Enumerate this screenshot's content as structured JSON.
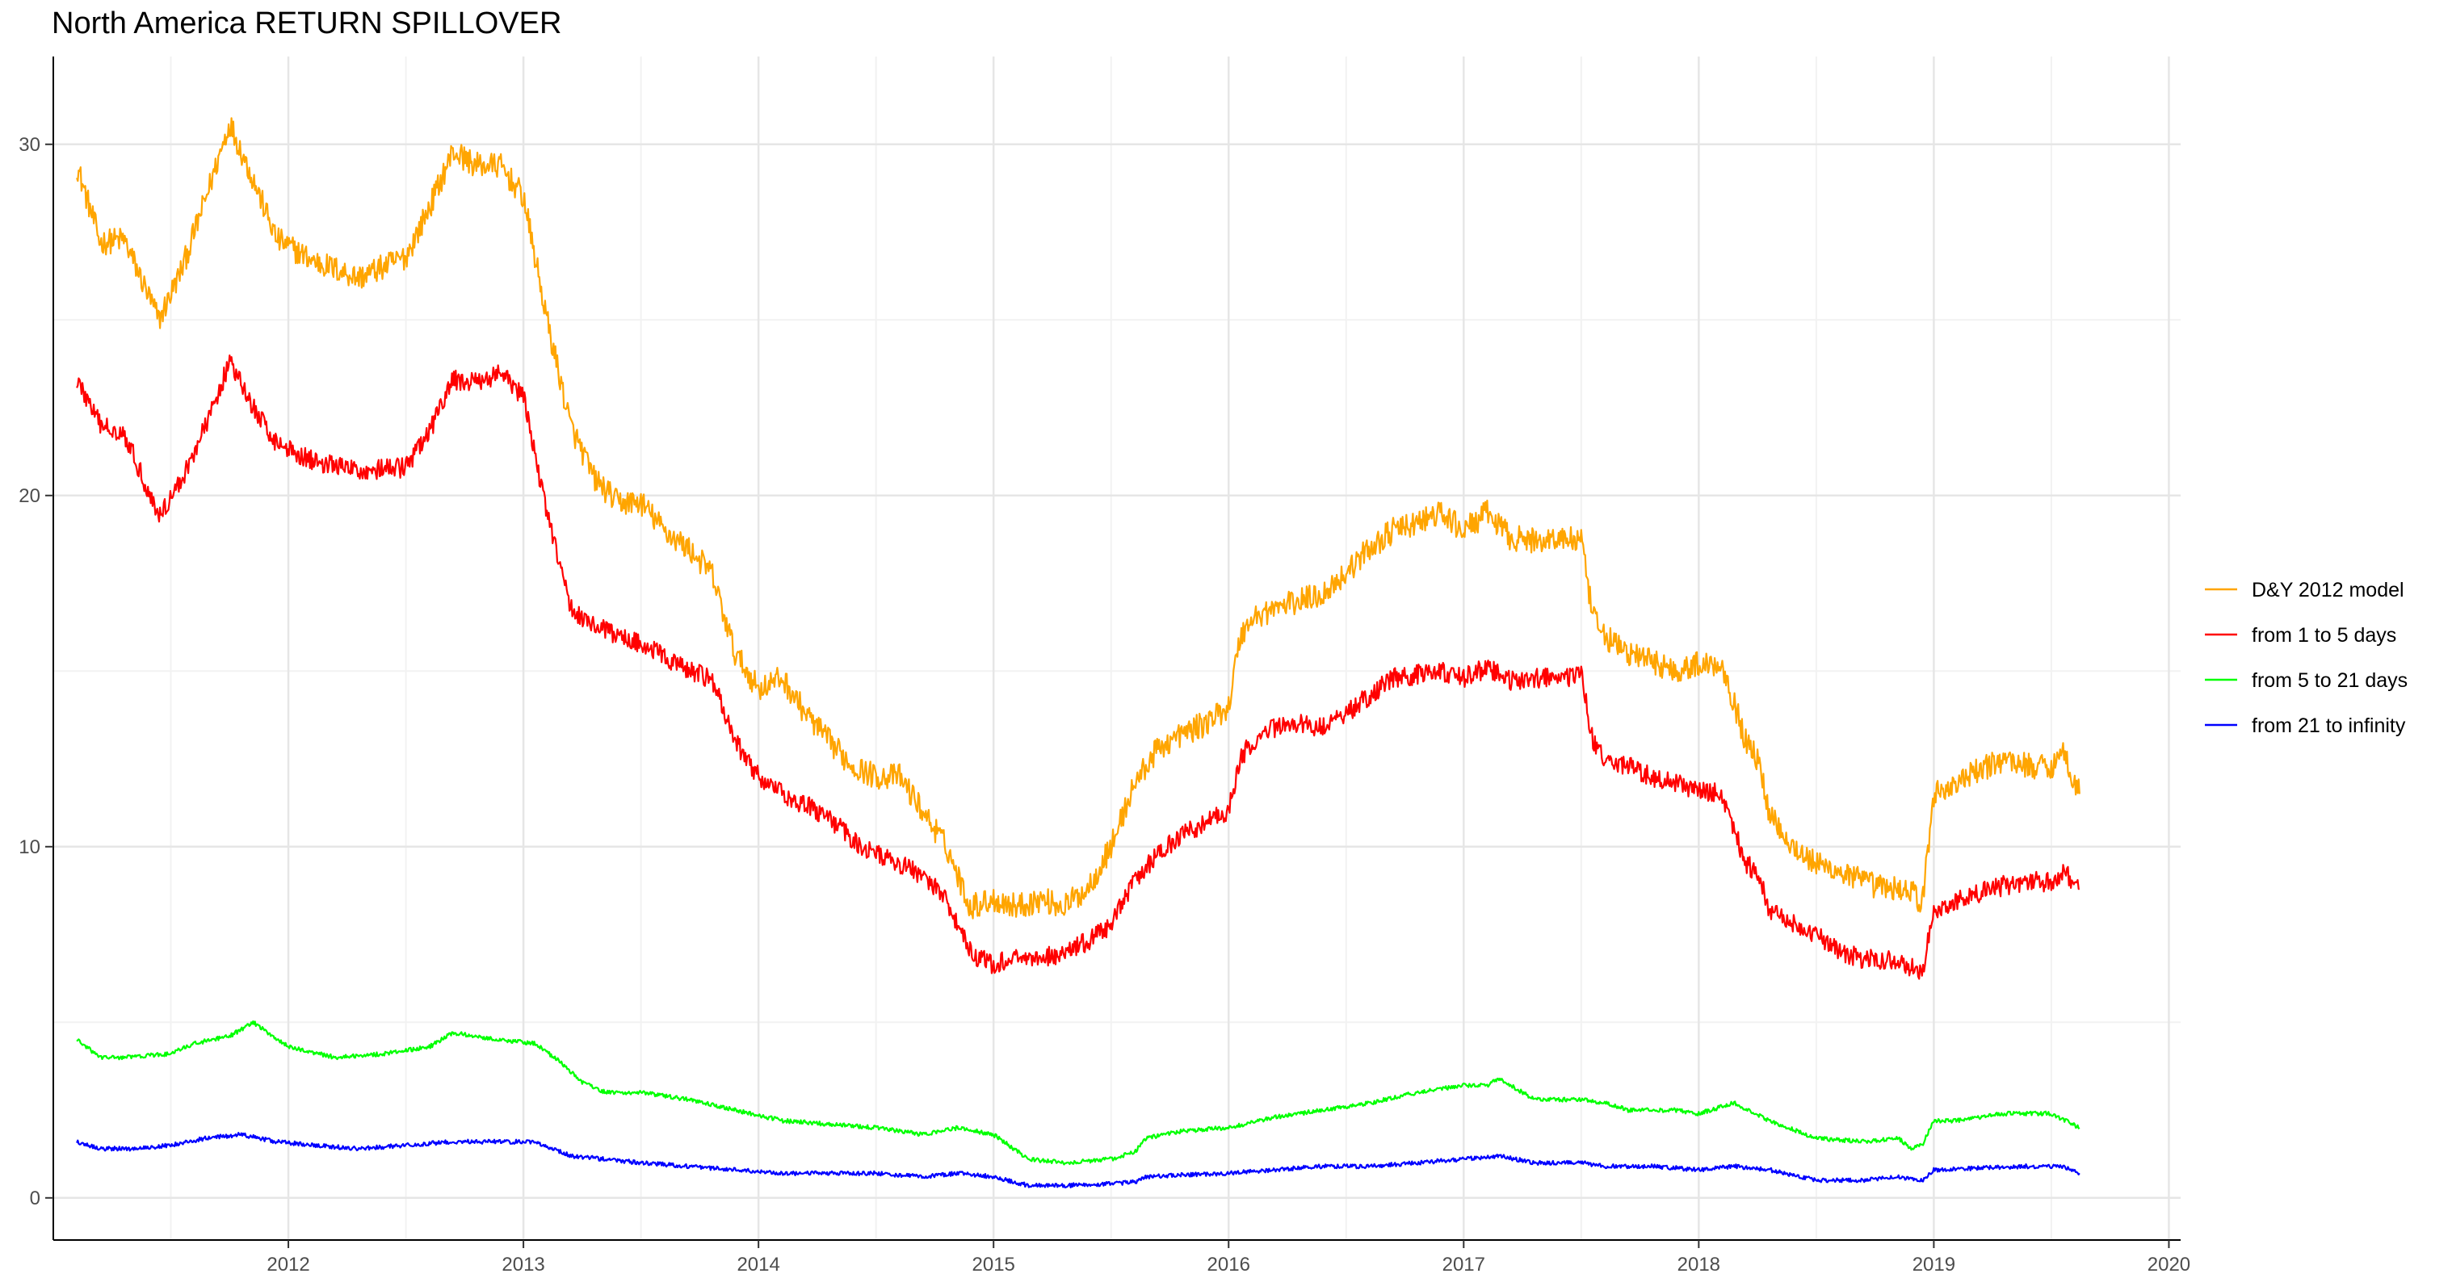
{
  "chart_data": {
    "type": "line",
    "title": "North America RETURN SPILLOVER",
    "xlabel": "",
    "ylabel": "",
    "x_ticks": [
      "2012",
      "2013",
      "2014",
      "2015",
      "2016",
      "2017",
      "2018",
      "2019",
      "2020"
    ],
    "y_ticks": [
      "0",
      "10",
      "20",
      "30"
    ],
    "xlim": [
      2011.0,
      2020.05
    ],
    "ylim": [
      -1.2,
      32.5
    ],
    "grid": true,
    "legend_position": "right",
    "series": [
      {
        "name": "D&Y 2012 model",
        "color": "#FFA500",
        "x": [
          2011.1,
          2011.2,
          2011.3,
          2011.45,
          2011.55,
          2011.65,
          2011.75,
          2011.85,
          2011.95,
          2012.1,
          2012.3,
          2012.5,
          2012.6,
          2012.7,
          2012.8,
          2012.9,
          2013.0,
          2013.1,
          2013.2,
          2013.3,
          2013.4,
          2013.5,
          2013.6,
          2013.7,
          2013.8,
          2013.9,
          2014.0,
          2014.1,
          2014.2,
          2014.3,
          2014.4,
          2014.5,
          2014.6,
          2014.7,
          2014.8,
          2014.9,
          2015.0,
          2015.1,
          2015.2,
          2015.3,
          2015.4,
          2015.5,
          2015.6,
          2015.7,
          2015.8,
          2015.9,
          2016.0,
          2016.05,
          2016.1,
          2016.2,
          2016.3,
          2016.4,
          2016.5,
          2016.6,
          2016.7,
          2016.8,
          2016.9,
          2017.0,
          2017.1,
          2017.2,
          2017.3,
          2017.4,
          2017.5,
          2017.55,
          2017.6,
          2017.7,
          2017.8,
          2017.9,
          2018.0,
          2018.1,
          2018.2,
          2018.25,
          2018.3,
          2018.4,
          2018.5,
          2018.6,
          2018.7,
          2018.8,
          2018.9,
          2018.95,
          2019.0,
          2019.1,
          2019.2,
          2019.3,
          2019.4,
          2019.5,
          2019.55,
          2019.62
        ],
        "values": [
          29.4,
          27.2,
          27.3,
          25.0,
          26.5,
          28.5,
          30.6,
          29.0,
          27.3,
          26.7,
          26.2,
          26.8,
          28.2,
          29.8,
          29.4,
          29.4,
          28.5,
          25.0,
          22.0,
          20.5,
          19.8,
          19.8,
          19.0,
          18.5,
          17.8,
          15.5,
          14.5,
          14.8,
          13.8,
          13.0,
          12.3,
          12.0,
          12.0,
          11.0,
          10.0,
          8.3,
          8.5,
          8.3,
          8.5,
          8.3,
          8.8,
          10.0,
          11.8,
          12.8,
          13.2,
          13.5,
          14.0,
          16.0,
          16.5,
          16.8,
          17.0,
          17.2,
          17.8,
          18.5,
          19.0,
          19.2,
          19.5,
          19.0,
          19.5,
          18.8,
          18.7,
          18.8,
          18.7,
          16.5,
          16.0,
          15.5,
          15.3,
          15.0,
          15.2,
          15.2,
          13.0,
          12.5,
          11.0,
          10.0,
          9.5,
          9.3,
          9.0,
          8.8,
          8.8,
          8.3,
          11.5,
          11.8,
          12.2,
          12.5,
          12.3,
          12.3,
          12.7,
          11.5
        ]
      },
      {
        "name": "from 1 to 5 days",
        "color": "#FF0000",
        "x": [
          2011.1,
          2011.2,
          2011.3,
          2011.45,
          2011.55,
          2011.65,
          2011.75,
          2011.85,
          2011.95,
          2012.1,
          2012.3,
          2012.5,
          2012.6,
          2012.7,
          2012.8,
          2012.9,
          2013.0,
          2013.1,
          2013.2,
          2013.3,
          2013.4,
          2013.5,
          2013.6,
          2013.7,
          2013.8,
          2013.9,
          2014.0,
          2014.1,
          2014.2,
          2014.3,
          2014.4,
          2014.5,
          2014.6,
          2014.7,
          2014.8,
          2014.9,
          2015.0,
          2015.1,
          2015.2,
          2015.3,
          2015.4,
          2015.5,
          2015.6,
          2015.7,
          2015.8,
          2015.9,
          2016.0,
          2016.05,
          2016.1,
          2016.2,
          2016.3,
          2016.4,
          2016.5,
          2016.6,
          2016.7,
          2016.8,
          2016.9,
          2017.0,
          2017.1,
          2017.2,
          2017.3,
          2017.4,
          2017.5,
          2017.55,
          2017.6,
          2017.7,
          2017.8,
          2017.9,
          2018.0,
          2018.1,
          2018.2,
          2018.25,
          2018.3,
          2018.4,
          2018.5,
          2018.6,
          2018.7,
          2018.8,
          2018.9,
          2018.95,
          2019.0,
          2019.1,
          2019.2,
          2019.3,
          2019.4,
          2019.5,
          2019.55,
          2019.62
        ],
        "values": [
          23.3,
          22.0,
          21.8,
          19.4,
          20.5,
          22.0,
          23.8,
          22.5,
          21.5,
          21.0,
          20.7,
          20.8,
          21.8,
          23.3,
          23.2,
          23.5,
          22.8,
          19.5,
          16.8,
          16.3,
          16.0,
          15.8,
          15.4,
          15.0,
          14.8,
          13.0,
          12.0,
          11.5,
          11.2,
          10.8,
          10.2,
          9.8,
          9.5,
          9.2,
          8.5,
          7.0,
          6.6,
          6.9,
          6.8,
          7.0,
          7.3,
          7.8,
          9.0,
          9.8,
          10.3,
          10.7,
          11.0,
          12.5,
          13.0,
          13.4,
          13.5,
          13.4,
          13.8,
          14.3,
          14.8,
          14.9,
          15.0,
          14.8,
          15.1,
          14.7,
          14.8,
          14.8,
          14.9,
          13.0,
          12.5,
          12.3,
          12.0,
          11.8,
          11.6,
          11.5,
          9.5,
          9.3,
          8.2,
          7.8,
          7.5,
          7.0,
          6.8,
          6.8,
          6.6,
          6.4,
          8.2,
          8.5,
          8.7,
          8.9,
          9.0,
          9.0,
          9.3,
          8.8
        ]
      },
      {
        "name": "from 5 to 21 days",
        "color": "#00FF00",
        "x": [
          2011.1,
          2011.2,
          2011.3,
          2011.5,
          2011.6,
          2011.75,
          2011.85,
          2012.0,
          2012.2,
          2012.4,
          2012.6,
          2012.7,
          2012.9,
          2013.05,
          2013.15,
          2013.25,
          2013.35,
          2013.5,
          2013.7,
          2013.9,
          2014.1,
          2014.3,
          2014.5,
          2014.7,
          2014.85,
          2015.0,
          2015.15,
          2015.3,
          2015.5,
          2015.6,
          2015.65,
          2015.8,
          2016.0,
          2016.2,
          2016.4,
          2016.6,
          2016.8,
          2017.0,
          2017.1,
          2017.15,
          2017.3,
          2017.5,
          2017.6,
          2017.7,
          2017.9,
          2018.0,
          2018.15,
          2018.3,
          2018.5,
          2018.7,
          2018.85,
          2018.9,
          2018.95,
          2019.0,
          2019.1,
          2019.3,
          2019.5,
          2019.62
        ],
        "values": [
          4.5,
          4.0,
          4.0,
          4.1,
          4.4,
          4.6,
          5.0,
          4.3,
          4.0,
          4.1,
          4.3,
          4.7,
          4.5,
          4.4,
          3.9,
          3.3,
          3.0,
          3.0,
          2.8,
          2.5,
          2.2,
          2.1,
          2.0,
          1.8,
          2.0,
          1.8,
          1.1,
          1.0,
          1.1,
          1.3,
          1.7,
          1.9,
          2.0,
          2.3,
          2.5,
          2.7,
          3.0,
          3.2,
          3.2,
          3.4,
          2.8,
          2.8,
          2.7,
          2.5,
          2.5,
          2.4,
          2.7,
          2.2,
          1.7,
          1.6,
          1.7,
          1.4,
          1.5,
          2.2,
          2.2,
          2.4,
          2.4,
          2.0
        ]
      },
      {
        "name": "from 21 to infinity",
        "color": "#0000FF",
        "x": [
          2011.1,
          2011.2,
          2011.35,
          2011.5,
          2011.65,
          2011.8,
          2011.95,
          2012.1,
          2012.3,
          2012.5,
          2012.7,
          2012.9,
          2013.05,
          2013.2,
          2013.35,
          2013.5,
          2013.7,
          2013.9,
          2014.1,
          2014.3,
          2014.5,
          2014.7,
          2014.85,
          2015.0,
          2015.15,
          2015.3,
          2015.5,
          2015.6,
          2015.65,
          2015.8,
          2016.0,
          2016.2,
          2016.4,
          2016.6,
          2016.8,
          2017.0,
          2017.15,
          2017.3,
          2017.5,
          2017.6,
          2017.8,
          2018.0,
          2018.15,
          2018.3,
          2018.5,
          2018.7,
          2018.85,
          2018.95,
          2019.0,
          2019.2,
          2019.4,
          2019.55,
          2019.62
        ],
        "values": [
          1.6,
          1.4,
          1.4,
          1.5,
          1.7,
          1.8,
          1.6,
          1.5,
          1.4,
          1.5,
          1.6,
          1.6,
          1.6,
          1.2,
          1.1,
          1.0,
          0.9,
          0.8,
          0.7,
          0.7,
          0.7,
          0.6,
          0.7,
          0.6,
          0.35,
          0.35,
          0.4,
          0.45,
          0.6,
          0.65,
          0.7,
          0.8,
          0.9,
          0.9,
          1.0,
          1.1,
          1.2,
          1.0,
          1.0,
          0.9,
          0.9,
          0.8,
          0.9,
          0.8,
          0.5,
          0.5,
          0.6,
          0.5,
          0.8,
          0.85,
          0.9,
          0.9,
          0.7
        ]
      }
    ]
  }
}
